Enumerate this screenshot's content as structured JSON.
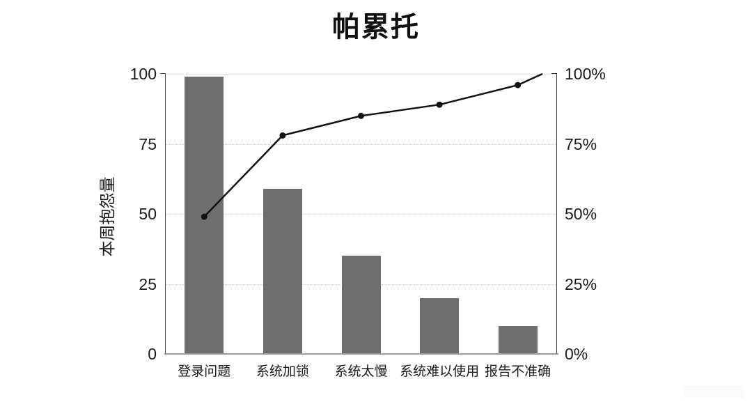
{
  "chart_data": {
    "type": "bar",
    "subtype": "pareto-combo-bar-line",
    "title": "帕累托",
    "ylabel": "本周抱怨量",
    "categories": [
      "登录问题",
      "系统加锁",
      "系统太慢",
      "系统难以使用",
      "报告不准确"
    ],
    "series": [
      {
        "name": "本周抱怨量",
        "render": "bar",
        "axis": "left",
        "values": [
          99,
          59,
          35,
          20,
          10
        ]
      },
      {
        "name": "cumulative-percent-line",
        "render": "line",
        "axis": "right",
        "values": [
          49,
          78,
          85,
          89,
          96
        ],
        "end_value": 100
      }
    ],
    "ylim": [
      0,
      100
    ],
    "y2lim": [
      0,
      100
    ],
    "left_tick_labels": [
      "100",
      "75",
      "50",
      "25",
      "0"
    ],
    "right_tick_labels": [
      "100%",
      "75%",
      "50%",
      "25%",
      "0%"
    ],
    "left_tick_values": [
      100,
      75,
      50,
      25,
      0
    ],
    "grid": "horizontal-dotted",
    "legend": "none"
  },
  "colors": {
    "background": "#ffffff",
    "bar": "#6e6e70",
    "line": "#111111",
    "marker": "#111111",
    "grid": "#c9c9c9",
    "axis_left": "#4a4a4a",
    "axis_right": "#3a3a3a",
    "axis_bottom": "#9b9b9b",
    "text": "#1a1a1a",
    "title_text": "#111111"
  }
}
